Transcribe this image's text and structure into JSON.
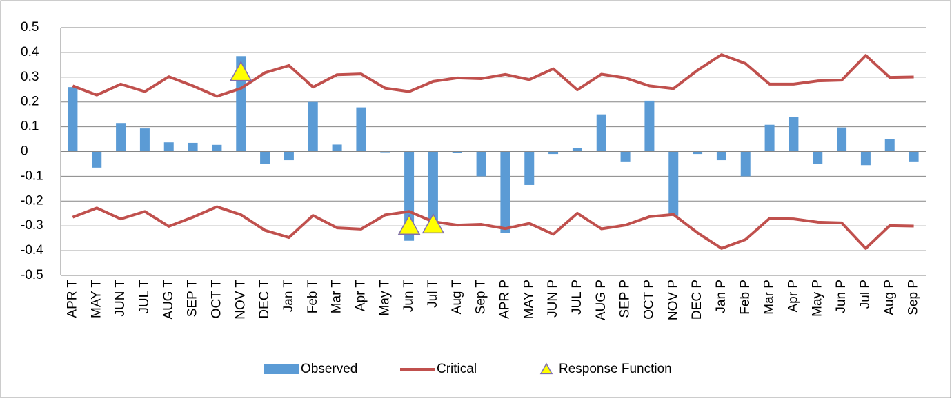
{
  "chart_data": {
    "type": "bar-line",
    "categories": [
      "APR T",
      "MAY T",
      "JUN T",
      "JUL T",
      "AUG T",
      "SEP T",
      "OCT T",
      "NOV T",
      "DEC T",
      "Jan T",
      "Feb T",
      "Mar T",
      "Apr T",
      "May T",
      "Jun T",
      "Jul T",
      "Aug T",
      "Sep T",
      "APR P",
      "MAY P",
      "JUN P",
      "JUL P",
      "AUG P",
      "SEP P",
      "OCT P",
      "NOV P",
      "DEC P",
      "Jan P",
      "Feb P",
      "Mar P",
      "Apr P",
      "May P",
      "Jun P",
      "Jul P",
      "Aug P",
      "Sep P"
    ],
    "series": [
      {
        "name": "Observed",
        "kind": "bar",
        "color": "#5b9bd5",
        "values": [
          0.26,
          -0.065,
          0.115,
          0.093,
          0.037,
          0.035,
          0.027,
          0.385,
          -0.05,
          -0.035,
          0.2,
          0.028,
          0.178,
          -0.003,
          -0.36,
          -0.3,
          -0.005,
          -0.1,
          -0.33,
          -0.135,
          -0.01,
          0.015,
          0.15,
          -0.04,
          0.205,
          -0.26,
          -0.01,
          -0.035,
          -0.1,
          0.108,
          0.138,
          -0.05,
          0.097,
          -0.055,
          0.05,
          -0.04
        ]
      },
      {
        "name": "Critical",
        "kind": "line",
        "color": "#c0504d",
        "values": [
          0.265,
          0.228,
          0.272,
          0.242,
          0.302,
          0.265,
          0.223,
          0.255,
          0.318,
          0.347,
          0.26,
          0.31,
          0.313,
          0.256,
          0.242,
          0.283,
          0.297,
          0.294,
          0.311,
          0.29,
          0.334,
          0.249,
          0.312,
          0.297,
          0.265,
          0.254,
          0.328,
          0.391,
          0.355,
          0.272,
          0.272,
          0.285,
          0.288,
          0.388,
          0.299,
          0.301
        ],
        "lower": [
          -0.265,
          -0.228,
          -0.272,
          -0.242,
          -0.302,
          -0.265,
          -0.223,
          -0.255,
          -0.318,
          -0.347,
          -0.258,
          -0.308,
          -0.313,
          -0.256,
          -0.242,
          -0.283,
          -0.297,
          -0.294,
          -0.311,
          -0.29,
          -0.334,
          -0.249,
          -0.312,
          -0.297,
          -0.263,
          -0.254,
          -0.328,
          -0.391,
          -0.355,
          -0.27,
          -0.272,
          -0.285,
          -0.288,
          -0.391,
          -0.299,
          -0.301
        ]
      },
      {
        "name": "Response Function",
        "kind": "marker",
        "color": "#ffff00",
        "values": [
          null,
          null,
          null,
          null,
          null,
          null,
          null,
          0.32,
          null,
          null,
          null,
          null,
          null,
          null,
          -0.3,
          -0.295,
          null,
          null,
          null,
          null,
          null,
          null,
          null,
          null,
          null,
          null,
          null,
          null,
          null,
          null,
          null,
          null,
          null,
          null,
          null,
          null
        ]
      }
    ],
    "ylim": [
      -0.5,
      0.5
    ],
    "yticks": [
      -0.5,
      -0.4,
      -0.3,
      -0.2,
      -0.1,
      0,
      0.1,
      0.2,
      0.3,
      0.4,
      0.5
    ],
    "grid": true,
    "legend": "bottom"
  }
}
